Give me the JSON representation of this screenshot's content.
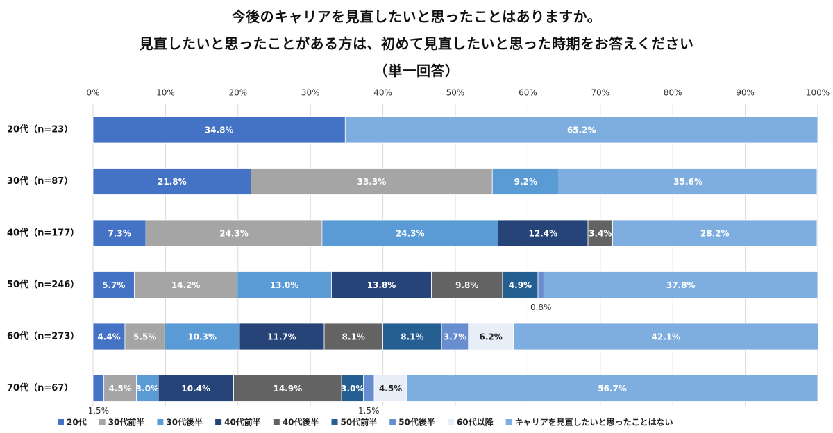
{
  "chart_data": {
    "type": "bar",
    "orientation": "horizontal",
    "stacked": true,
    "title": [
      "今後のキャリアを見直したいと思ったことはありますか。",
      "見直したいと思ったことがある方は、初めて見直したいと思った時期をお答えください",
      "（単一回答）"
    ],
    "x_ticks": [
      "0%",
      "10%",
      "20%",
      "30%",
      "40%",
      "50%",
      "60%",
      "70%",
      "80%",
      "90%",
      "100%"
    ],
    "xlim": [
      0,
      100
    ],
    "grid": "vertical",
    "legend_position": "bottom",
    "categories": [
      "20代（n=23）",
      "30代（n=87）",
      "40代（n=177）",
      "50代（n=246）",
      "60代（n=273）",
      "70代（n=67）"
    ],
    "series": [
      {
        "name": "20代",
        "color": "#4472c4",
        "values": [
          34.8,
          21.8,
          7.3,
          5.7,
          4.4,
          1.5
        ]
      },
      {
        "name": "30代前半",
        "color": "#a5a5a5",
        "values": [
          null,
          33.3,
          24.3,
          14.2,
          5.5,
          4.5
        ]
      },
      {
        "name": "30代後半",
        "color": "#5b9bd5",
        "values": [
          null,
          9.2,
          24.3,
          13.0,
          10.3,
          3.0
        ]
      },
      {
        "name": "40代前半",
        "color": "#264478",
        "values": [
          null,
          null,
          12.4,
          13.8,
          11.7,
          10.4
        ]
      },
      {
        "name": "40代後半",
        "color": "#636363",
        "values": [
          null,
          null,
          3.4,
          9.8,
          8.1,
          14.9
        ]
      },
      {
        "name": "50代前半",
        "color": "#255e91",
        "values": [
          null,
          null,
          null,
          4.9,
          8.1,
          3.0
        ]
      },
      {
        "name": "50代後半",
        "color": "#698ed0",
        "values": [
          null,
          null,
          null,
          0.8,
          3.7,
          1.5
        ]
      },
      {
        "name": "60代以降",
        "color": "#e7eef8",
        "values": [
          null,
          null,
          null,
          null,
          6.2,
          4.5
        ]
      },
      {
        "name": "キャリアを見直したいと思ったことはない",
        "color": "#7eaee0",
        "values": [
          65.2,
          35.6,
          28.2,
          37.8,
          42.1,
          56.7
        ]
      }
    ],
    "light_label_series": [
      "60代以降"
    ]
  }
}
